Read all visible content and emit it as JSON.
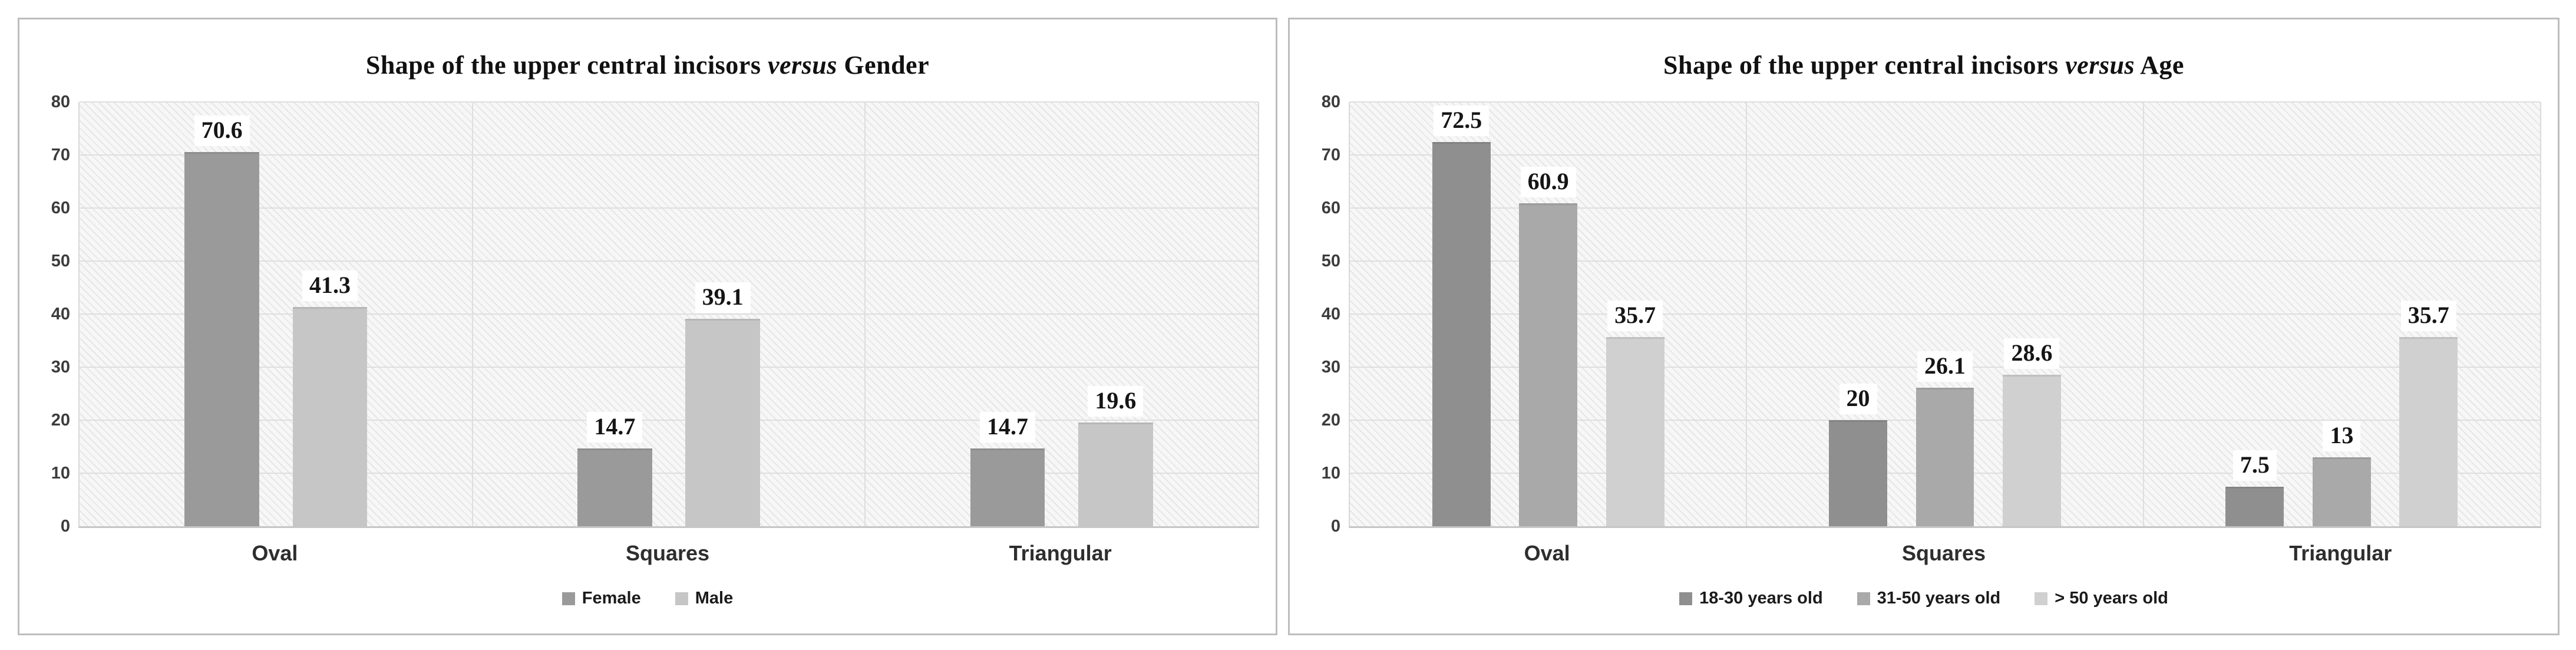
{
  "chart_data": [
    {
      "type": "bar",
      "title": "Shape of the upper central incisors versus Gender",
      "title_prefix": "Shape of the upper central incisors ",
      "title_versus": "versus",
      "title_suffix": " Gender",
      "categories": [
        "Oval",
        "Squares",
        "Triangular"
      ],
      "series": [
        {
          "name": "Female",
          "color": "#9a9a9a",
          "values": [
            70.6,
            14.7,
            14.7
          ],
          "labels": [
            "70.6",
            "14.7",
            "14.7"
          ]
        },
        {
          "name": "Male",
          "color": "#c6c6c6",
          "values": [
            41.3,
            39.1,
            19.6
          ],
          "labels": [
            "41.3",
            "39.1",
            "19.6"
          ]
        }
      ],
      "ylim": [
        0,
        80
      ],
      "yticks": [
        0,
        10,
        20,
        30,
        40,
        50,
        60,
        70,
        80
      ],
      "grid": "horizontal gridlines every 10, vertical separators between categories",
      "legend_position": "bottom-center",
      "data_labels": true
    },
    {
      "type": "bar",
      "title": "Shape of the upper central incisors versus Age",
      "title_prefix": "Shape of the upper central incisors ",
      "title_versus": "versus",
      "title_suffix": " Age",
      "categories": [
        "Oval",
        "Squares",
        "Triangular"
      ],
      "series": [
        {
          "name": "18-30 years old",
          "color": "#8f8f8f",
          "values": [
            72.5,
            20,
            7.5
          ],
          "labels": [
            "72.5",
            "20",
            "7.5"
          ]
        },
        {
          "name": "31-50 years old",
          "color": "#a9a9a9",
          "values": [
            60.9,
            26.1,
            13
          ],
          "labels": [
            "60.9",
            "26.1",
            "13"
          ]
        },
        {
          "name": "> 50 years old",
          "color": "#d0d0d0",
          "values": [
            35.7,
            28.6,
            35.7
          ],
          "labels": [
            "35.7",
            "28.6",
            "35.7"
          ]
        }
      ],
      "ylim": [
        0,
        80
      ],
      "yticks": [
        0,
        10,
        20,
        30,
        40,
        50,
        60,
        70,
        80
      ],
      "grid": "horizontal gridlines every 10, vertical separators between categories",
      "legend_position": "bottom-center",
      "data_labels": true
    }
  ]
}
